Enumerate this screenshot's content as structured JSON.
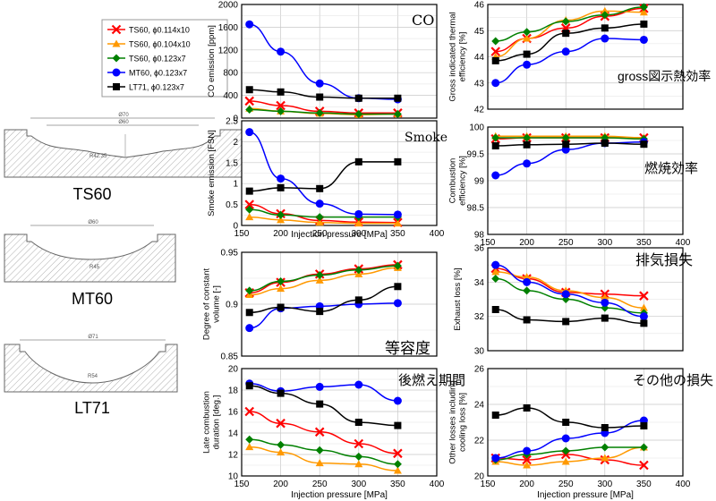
{
  "legend": [
    {
      "label": "TS60, ϕ0.114x10",
      "color": "#ff0000",
      "marker": "x"
    },
    {
      "label": "TS60, ϕ0.104x10",
      "color": "#ff9900",
      "marker": "triangle"
    },
    {
      "label": "TS60, ϕ0.123x7",
      "color": "#008000",
      "marker": "diamond"
    },
    {
      "label": "MT60, ϕ0.123x7",
      "color": "#0000ff",
      "marker": "circle"
    },
    {
      "label": "LT71, ϕ0.123x7",
      "color": "#000000",
      "marker": "square"
    }
  ],
  "pistons": [
    {
      "name": "TS60",
      "top_dim": "Ø70",
      "inner_dim": "Ø60",
      "depth_dim": "R42.35"
    },
    {
      "name": "MT60",
      "top_dim": "Ø60",
      "inner_dim": "",
      "depth_dim": "R45"
    },
    {
      "name": "LT71",
      "top_dim": "Ø71",
      "inner_dim": "",
      "depth_dim": "R54"
    }
  ],
  "chart_data": [
    {
      "id": "co",
      "type": "scatter",
      "title": "CO",
      "ylabel": "CO emission [ppm]",
      "xlabel": "",
      "xlim": [
        150,
        400
      ],
      "ylim": [
        0,
        2000
      ],
      "xticks": [],
      "yticks": [
        "0",
        "400",
        "800",
        "1200",
        "1600",
        "2000"
      ],
      "series": [
        {
          "name": "TS60, ϕ0.114x10",
          "x": [
            160,
            200,
            250,
            300,
            350
          ],
          "y": [
            300,
            220,
            120,
            90,
            90
          ]
        },
        {
          "name": "TS60, ϕ0.104x10",
          "x": [
            160,
            200,
            250,
            300,
            350
          ],
          "y": [
            170,
            120,
            80,
            60,
            70
          ]
        },
        {
          "name": "TS60, ϕ0.123x7",
          "x": [
            160,
            200,
            250,
            300,
            350
          ],
          "y": [
            150,
            120,
            90,
            70,
            70
          ]
        },
        {
          "name": "MT60, ϕ0.123x7",
          "x": [
            160,
            200,
            250,
            300,
            350
          ],
          "y": [
            1650,
            1170,
            610,
            350,
            330
          ]
        },
        {
          "name": "LT71, ϕ0.123x7",
          "x": [
            160,
            200,
            250,
            300,
            350
          ],
          "y": [
            500,
            460,
            370,
            350,
            350
          ]
        }
      ]
    },
    {
      "id": "smoke",
      "type": "scatter",
      "title": "Smoke",
      "ylabel": "Smoke emission [FSN]",
      "xlabel": "Injection pressure [MPa]",
      "xlim": [
        150,
        400
      ],
      "ylim": [
        0,
        2.5
      ],
      "xticks": [
        "150",
        "200",
        "250",
        "300",
        "350",
        "400"
      ],
      "yticks": [
        "0",
        "0.5",
        "1",
        "1.5",
        "2",
        "2.5"
      ],
      "series": [
        {
          "name": "TS60, ϕ0.114x10",
          "x": [
            160,
            200,
            250,
            300,
            350
          ],
          "y": [
            0.5,
            0.28,
            0.12,
            0.08,
            0.07
          ]
        },
        {
          "name": "TS60, ϕ0.104x10",
          "x": [
            160,
            200,
            250,
            300,
            350
          ],
          "y": [
            0.2,
            0.13,
            0.07,
            0.05,
            0.05
          ]
        },
        {
          "name": "TS60, ϕ0.123x7",
          "x": [
            160,
            200,
            250,
            300,
            350
          ],
          "y": [
            0.38,
            0.25,
            0.2,
            0.2,
            0.2
          ]
        },
        {
          "name": "MT60, ϕ0.123x7",
          "x": [
            160,
            200,
            250,
            300,
            350
          ],
          "y": [
            2.23,
            1.12,
            0.52,
            0.27,
            0.26
          ]
        },
        {
          "name": "LT71, ϕ0.123x7",
          "x": [
            160,
            200,
            250,
            300,
            350
          ],
          "y": [
            0.82,
            0.9,
            0.88,
            1.52,
            1.52
          ]
        }
      ]
    },
    {
      "id": "doc",
      "type": "scatter",
      "title": "等容度",
      "ylabel": "Degree of constant volume [-]",
      "xlabel": "",
      "xlim": [
        150,
        400
      ],
      "ylim": [
        0.85,
        0.95
      ],
      "xticks": [],
      "yticks": [
        "0.85",
        "0.9",
        "0.95"
      ],
      "series": [
        {
          "name": "TS60, ϕ0.114x10",
          "x": [
            160,
            200,
            250,
            300,
            350
          ],
          "y": [
            0.911,
            0.921,
            0.929,
            0.934,
            0.938
          ]
        },
        {
          "name": "TS60, ϕ0.104x10",
          "x": [
            160,
            200,
            250,
            300,
            350
          ],
          "y": [
            0.909,
            0.915,
            0.923,
            0.929,
            0.935
          ]
        },
        {
          "name": "TS60, ϕ0.123x7",
          "x": [
            160,
            200,
            250,
            300,
            350
          ],
          "y": [
            0.913,
            0.922,
            0.928,
            0.933,
            0.937
          ]
        },
        {
          "name": "MT60, ϕ0.123x7",
          "x": [
            160,
            200,
            250,
            300,
            350
          ],
          "y": [
            0.877,
            0.896,
            0.898,
            0.9,
            0.901
          ]
        },
        {
          "name": "LT71, ϕ0.123x7",
          "x": [
            160,
            200,
            250,
            300,
            350
          ],
          "y": [
            0.892,
            0.897,
            0.893,
            0.904,
            0.917
          ]
        }
      ]
    },
    {
      "id": "late",
      "type": "scatter",
      "title": "後燃え期間",
      "ylabel": "Late combustion duration [deg.]",
      "xlabel": "Injection pressure [MPa]",
      "xlim": [
        150,
        400
      ],
      "ylim": [
        10,
        20
      ],
      "xticks": [
        "150",
        "200",
        "250",
        "300",
        "350",
        "400"
      ],
      "yticks": [
        "10",
        "12",
        "14",
        "16",
        "18",
        "20"
      ],
      "series": [
        {
          "name": "TS60, ϕ0.114x10",
          "x": [
            160,
            200,
            250,
            300,
            350
          ],
          "y": [
            16.0,
            14.9,
            14.1,
            13.0,
            12.1
          ]
        },
        {
          "name": "TS60, ϕ0.104x10",
          "x": [
            160,
            200,
            250,
            300,
            350
          ],
          "y": [
            12.7,
            12.2,
            11.2,
            11.1,
            10.5
          ]
        },
        {
          "name": "TS60, ϕ0.123x7",
          "x": [
            160,
            200,
            250,
            300,
            350
          ],
          "y": [
            13.4,
            12.9,
            12.4,
            11.8,
            11.1
          ]
        },
        {
          "name": "MT60, ϕ0.123x7",
          "x": [
            160,
            200,
            250,
            300,
            350
          ],
          "y": [
            18.6,
            17.9,
            18.3,
            18.5,
            17.0
          ]
        },
        {
          "name": "LT71, ϕ0.123x7",
          "x": [
            160,
            200,
            250,
            300,
            350
          ],
          "y": [
            18.4,
            17.7,
            16.7,
            15.0,
            14.7
          ]
        }
      ]
    },
    {
      "id": "gross",
      "type": "scatter",
      "title": "gross図示熱効率",
      "ylabel": "Gross indicated thermal efficiency [%]",
      "xlabel": "",
      "xlim": [
        150,
        400
      ],
      "ylim": [
        42,
        46
      ],
      "xticks": [],
      "yticks": [
        "42",
        "43",
        "44",
        "45",
        "46"
      ],
      "series": [
        {
          "name": "TS60, ϕ0.114x10",
          "x": [
            160,
            200,
            250,
            300,
            350
          ],
          "y": [
            44.2,
            44.7,
            45.1,
            45.55,
            45.85
          ]
        },
        {
          "name": "TS60, ϕ0.104x10",
          "x": [
            160,
            200,
            250,
            300,
            350
          ],
          "y": [
            44.0,
            44.7,
            45.4,
            45.75,
            45.7
          ]
        },
        {
          "name": "TS60, ϕ0.123x7",
          "x": [
            160,
            200,
            250,
            300,
            350
          ],
          "y": [
            44.6,
            44.95,
            45.35,
            45.6,
            45.9
          ]
        },
        {
          "name": "MT60, ϕ0.123x7",
          "x": [
            160,
            200,
            250,
            300,
            350
          ],
          "y": [
            43.0,
            43.7,
            44.2,
            44.7,
            44.65
          ]
        },
        {
          "name": "LT71, ϕ0.123x7",
          "x": [
            160,
            200,
            250,
            300,
            350
          ],
          "y": [
            43.85,
            44.1,
            44.9,
            45.1,
            45.25
          ]
        }
      ]
    },
    {
      "id": "comb",
      "type": "scatter",
      "title": "燃焼効率",
      "ylabel": "Combustion efficiency [%]",
      "xlabel": "Injection pressure [MPa]",
      "xlim": [
        150,
        400
      ],
      "ylim": [
        98,
        100
      ],
      "xticks": [
        "150",
        "200",
        "250",
        "300",
        "350",
        "400"
      ],
      "yticks": [
        "98",
        "98.5",
        "99",
        "99.5",
        "100"
      ],
      "series": [
        {
          "name": "TS60, ϕ0.114x10",
          "x": [
            160,
            200,
            250,
            300,
            350
          ],
          "y": [
            99.78,
            99.8,
            99.8,
            99.8,
            99.8
          ]
        },
        {
          "name": "TS60, ϕ0.104x10",
          "x": [
            160,
            200,
            250,
            300,
            350
          ],
          "y": [
            99.83,
            99.83,
            99.83,
            99.83,
            99.8
          ]
        },
        {
          "name": "TS60, ϕ0.123x7",
          "x": [
            160,
            200,
            250,
            300,
            350
          ],
          "y": [
            99.8,
            99.8,
            99.8,
            99.8,
            99.78
          ]
        },
        {
          "name": "MT60, ϕ0.123x7",
          "x": [
            160,
            200,
            250,
            300,
            350
          ],
          "y": [
            99.1,
            99.32,
            99.58,
            99.7,
            99.72
          ]
        },
        {
          "name": "LT71, ϕ0.123x7",
          "x": [
            160,
            200,
            250,
            300,
            350
          ],
          "y": [
            99.65,
            99.67,
            99.68,
            99.7,
            99.68
          ]
        }
      ]
    },
    {
      "id": "exhaust",
      "type": "scatter",
      "title": "排気損失",
      "ylabel": "Exhaust loss [%]",
      "xlabel": "",
      "xlim": [
        150,
        400
      ],
      "ylim": [
        30,
        36
      ],
      "xticks": [],
      "yticks": [
        "30",
        "32",
        "34",
        "36"
      ],
      "series": [
        {
          "name": "TS60, ϕ0.114x10",
          "x": [
            160,
            200,
            250,
            300,
            350
          ],
          "y": [
            34.8,
            34.2,
            33.4,
            33.3,
            33.2
          ]
        },
        {
          "name": "TS60, ϕ0.104x10",
          "x": [
            160,
            200,
            250,
            300,
            350
          ],
          "y": [
            34.6,
            34.3,
            33.5,
            33.1,
            32.5
          ]
        },
        {
          "name": "TS60, ϕ0.123x7",
          "x": [
            160,
            200,
            250,
            300,
            350
          ],
          "y": [
            34.2,
            33.5,
            33.0,
            32.5,
            32.2
          ]
        },
        {
          "name": "MT60, ϕ0.123x7",
          "x": [
            160,
            200,
            250,
            300,
            350
          ],
          "y": [
            35.0,
            34.0,
            33.3,
            32.8,
            32.0
          ]
        },
        {
          "name": "LT71, ϕ0.123x7",
          "x": [
            160,
            200,
            250,
            300,
            350
          ],
          "y": [
            32.4,
            31.8,
            31.7,
            31.9,
            31.6
          ]
        }
      ]
    },
    {
      "id": "other",
      "type": "scatter",
      "title": "その他の損失",
      "ylabel": "Other losses including cooling loss [%]",
      "xlabel": "Injection pressure [MPa]",
      "xlim": [
        150,
        400
      ],
      "ylim": [
        20,
        26
      ],
      "xticks": [
        "150",
        "200",
        "250",
        "300",
        "350",
        "400"
      ],
      "yticks": [
        "20",
        "22",
        "24",
        "26"
      ],
      "series": [
        {
          "name": "TS60, ϕ0.114x10",
          "x": [
            160,
            200,
            250,
            300,
            350
          ],
          "y": [
            21.0,
            20.9,
            21.2,
            20.9,
            20.6
          ]
        },
        {
          "name": "TS60, ϕ0.104x10",
          "x": [
            160,
            200,
            250,
            300,
            350
          ],
          "y": [
            20.8,
            20.6,
            20.8,
            21.0,
            21.6
          ]
        },
        {
          "name": "TS60, ϕ0.123x7",
          "x": [
            160,
            200,
            250,
            300,
            350
          ],
          "y": [
            20.9,
            21.2,
            21.4,
            21.6,
            21.6
          ]
        },
        {
          "name": "MT60, ϕ0.123x7",
          "x": [
            160,
            200,
            250,
            300,
            350
          ],
          "y": [
            21.0,
            21.4,
            22.1,
            22.4,
            23.1
          ]
        },
        {
          "name": "LT71, ϕ0.123x7",
          "x": [
            160,
            200,
            250,
            300,
            350
          ],
          "y": [
            23.4,
            23.8,
            23.0,
            22.7,
            22.8
          ]
        }
      ]
    }
  ]
}
